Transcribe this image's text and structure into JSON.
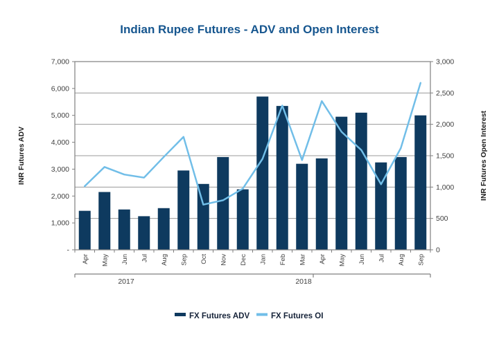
{
  "title": "Indian Rupee Futures - ADV and Open Interest",
  "y_left": {
    "title": "INR Futures ADV",
    "ticks": [
      "7,000",
      "6,000",
      "5,000",
      "4,000",
      "3,000",
      "2,000",
      "1,000",
      "-"
    ]
  },
  "y_right": {
    "title": "INR Futures Open Interest",
    "ticks": [
      "3,000",
      "2,500",
      "2,000",
      "1,500",
      "1,000",
      "500",
      "0"
    ]
  },
  "x_axis": {
    "months": [
      "Apr",
      "May",
      "Jun",
      "Jul",
      "Aug",
      "Sep",
      "Oct",
      "Nov",
      "Dec",
      "Jan",
      "Feb",
      "Mar",
      "Apr",
      "May",
      "Jun",
      "Jul",
      "Aug",
      "Sep"
    ],
    "years": [
      {
        "label": "2017"
      },
      {
        "label": "2018"
      }
    ]
  },
  "legend": [
    {
      "label": "FX Futures ADV",
      "swatch": "bar"
    },
    {
      "label": "FX Futures OI",
      "swatch": "line"
    }
  ],
  "colors": {
    "bar": "#0E3A5F",
    "line": "#71BEE8",
    "grid": "#9A9A9A",
    "axis": "#7F7F7F",
    "tick_text": "#404040",
    "title": "#16568F",
    "legend_text": "#152238",
    "axis_title_text": "#1A1A1A"
  },
  "chart_data": {
    "type": "bar",
    "subtype": "combo bar + line, dual axis",
    "title": "Indian Rupee Futures - ADV and Open Interest",
    "categories": [
      "Apr 2017",
      "May 2017",
      "Jun 2017",
      "Jul 2017",
      "Aug 2017",
      "Sep 2017",
      "Oct 2017",
      "Nov 2017",
      "Dec 2017",
      "Jan 2018",
      "Feb 2018",
      "Mar 2018",
      "Apr 2018",
      "May 2018",
      "Jun 2018",
      "Jul 2018",
      "Aug 2018",
      "Sep 2018"
    ],
    "series": [
      {
        "name": "FX Futures ADV",
        "type": "bar",
        "axis": "left",
        "values": [
          1450,
          2150,
          1500,
          1250,
          1550,
          2950,
          2450,
          3450,
          2250,
          5700,
          5350,
          3200,
          3400,
          4950,
          5100,
          3250,
          3450,
          5000
        ]
      },
      {
        "name": "FX Futures OI",
        "type": "line",
        "axis": "right",
        "values": [
          1015,
          1320,
          1200,
          1150,
          1480,
          1800,
          720,
          790,
          975,
          1450,
          2300,
          1430,
          2370,
          1880,
          1590,
          1045,
          1620,
          2660
        ]
      }
    ],
    "ylabel_left": "INR Futures ADV",
    "ylim_left": [
      0,
      7000
    ],
    "yticks_left_step": 1000,
    "ylabel_right": "INR Futures Open Interest",
    "ylim_right": [
      0,
      3000
    ],
    "yticks_right_step": 500,
    "grid": "horizontal, aligned to right axis (every 500 OI)",
    "legend_position": "bottom center"
  }
}
